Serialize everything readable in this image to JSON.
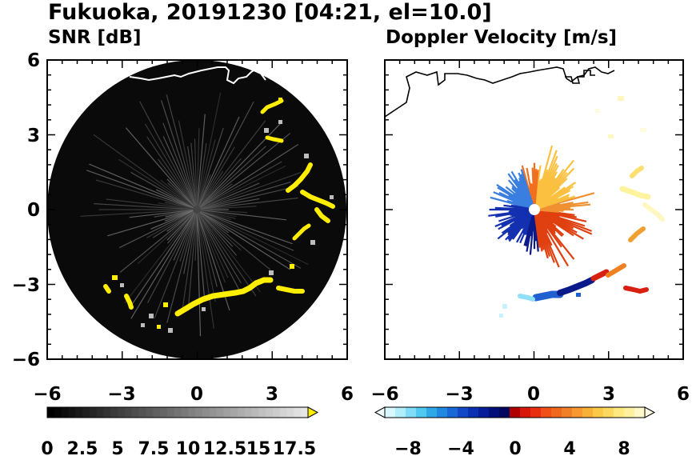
{
  "title": "Fukuoka, 20191230 [04:21, el=10.0]",
  "colors": {
    "snr_background": "#0a0a0a",
    "snr_high": "#ffee00",
    "frame": "#000000",
    "coast_on_snr": "#ffffff",
    "coast_on_velocity": "#000000"
  },
  "chart_data": [
    {
      "type": "heatmap",
      "title": "SNR [dB]",
      "xlim": [
        -6,
        6
      ],
      "ylim": [
        -6,
        6
      ],
      "xticks": [
        "−6",
        "−3",
        "0",
        "3",
        "6"
      ],
      "yticks": [
        "6",
        "3",
        "0",
        "−3",
        "−6"
      ],
      "grid": false,
      "colorbar": {
        "min": 0,
        "max": 18.5,
        "extend": "max",
        "colormap": "greyscale-to-yellow",
        "tick_labels": [
          "0",
          "2.5",
          "5",
          "7.5",
          "10",
          "12.5",
          "15",
          "17.5"
        ]
      }
    },
    {
      "type": "heatmap",
      "title": "Doppler Velocity [m/s]",
      "xlim": [
        -6,
        6
      ],
      "ylim": [
        -6,
        6
      ],
      "xticks": [
        "−6",
        "−3",
        "0",
        "3",
        "6"
      ],
      "yticks": [],
      "grid": false,
      "colorbar": {
        "min": -10,
        "max": 10,
        "extend": "both",
        "colormap": "blue-white-red-yellow",
        "tick_labels": [
          "−8",
          "−4",
          "0",
          "4",
          "8"
        ]
      }
    }
  ]
}
